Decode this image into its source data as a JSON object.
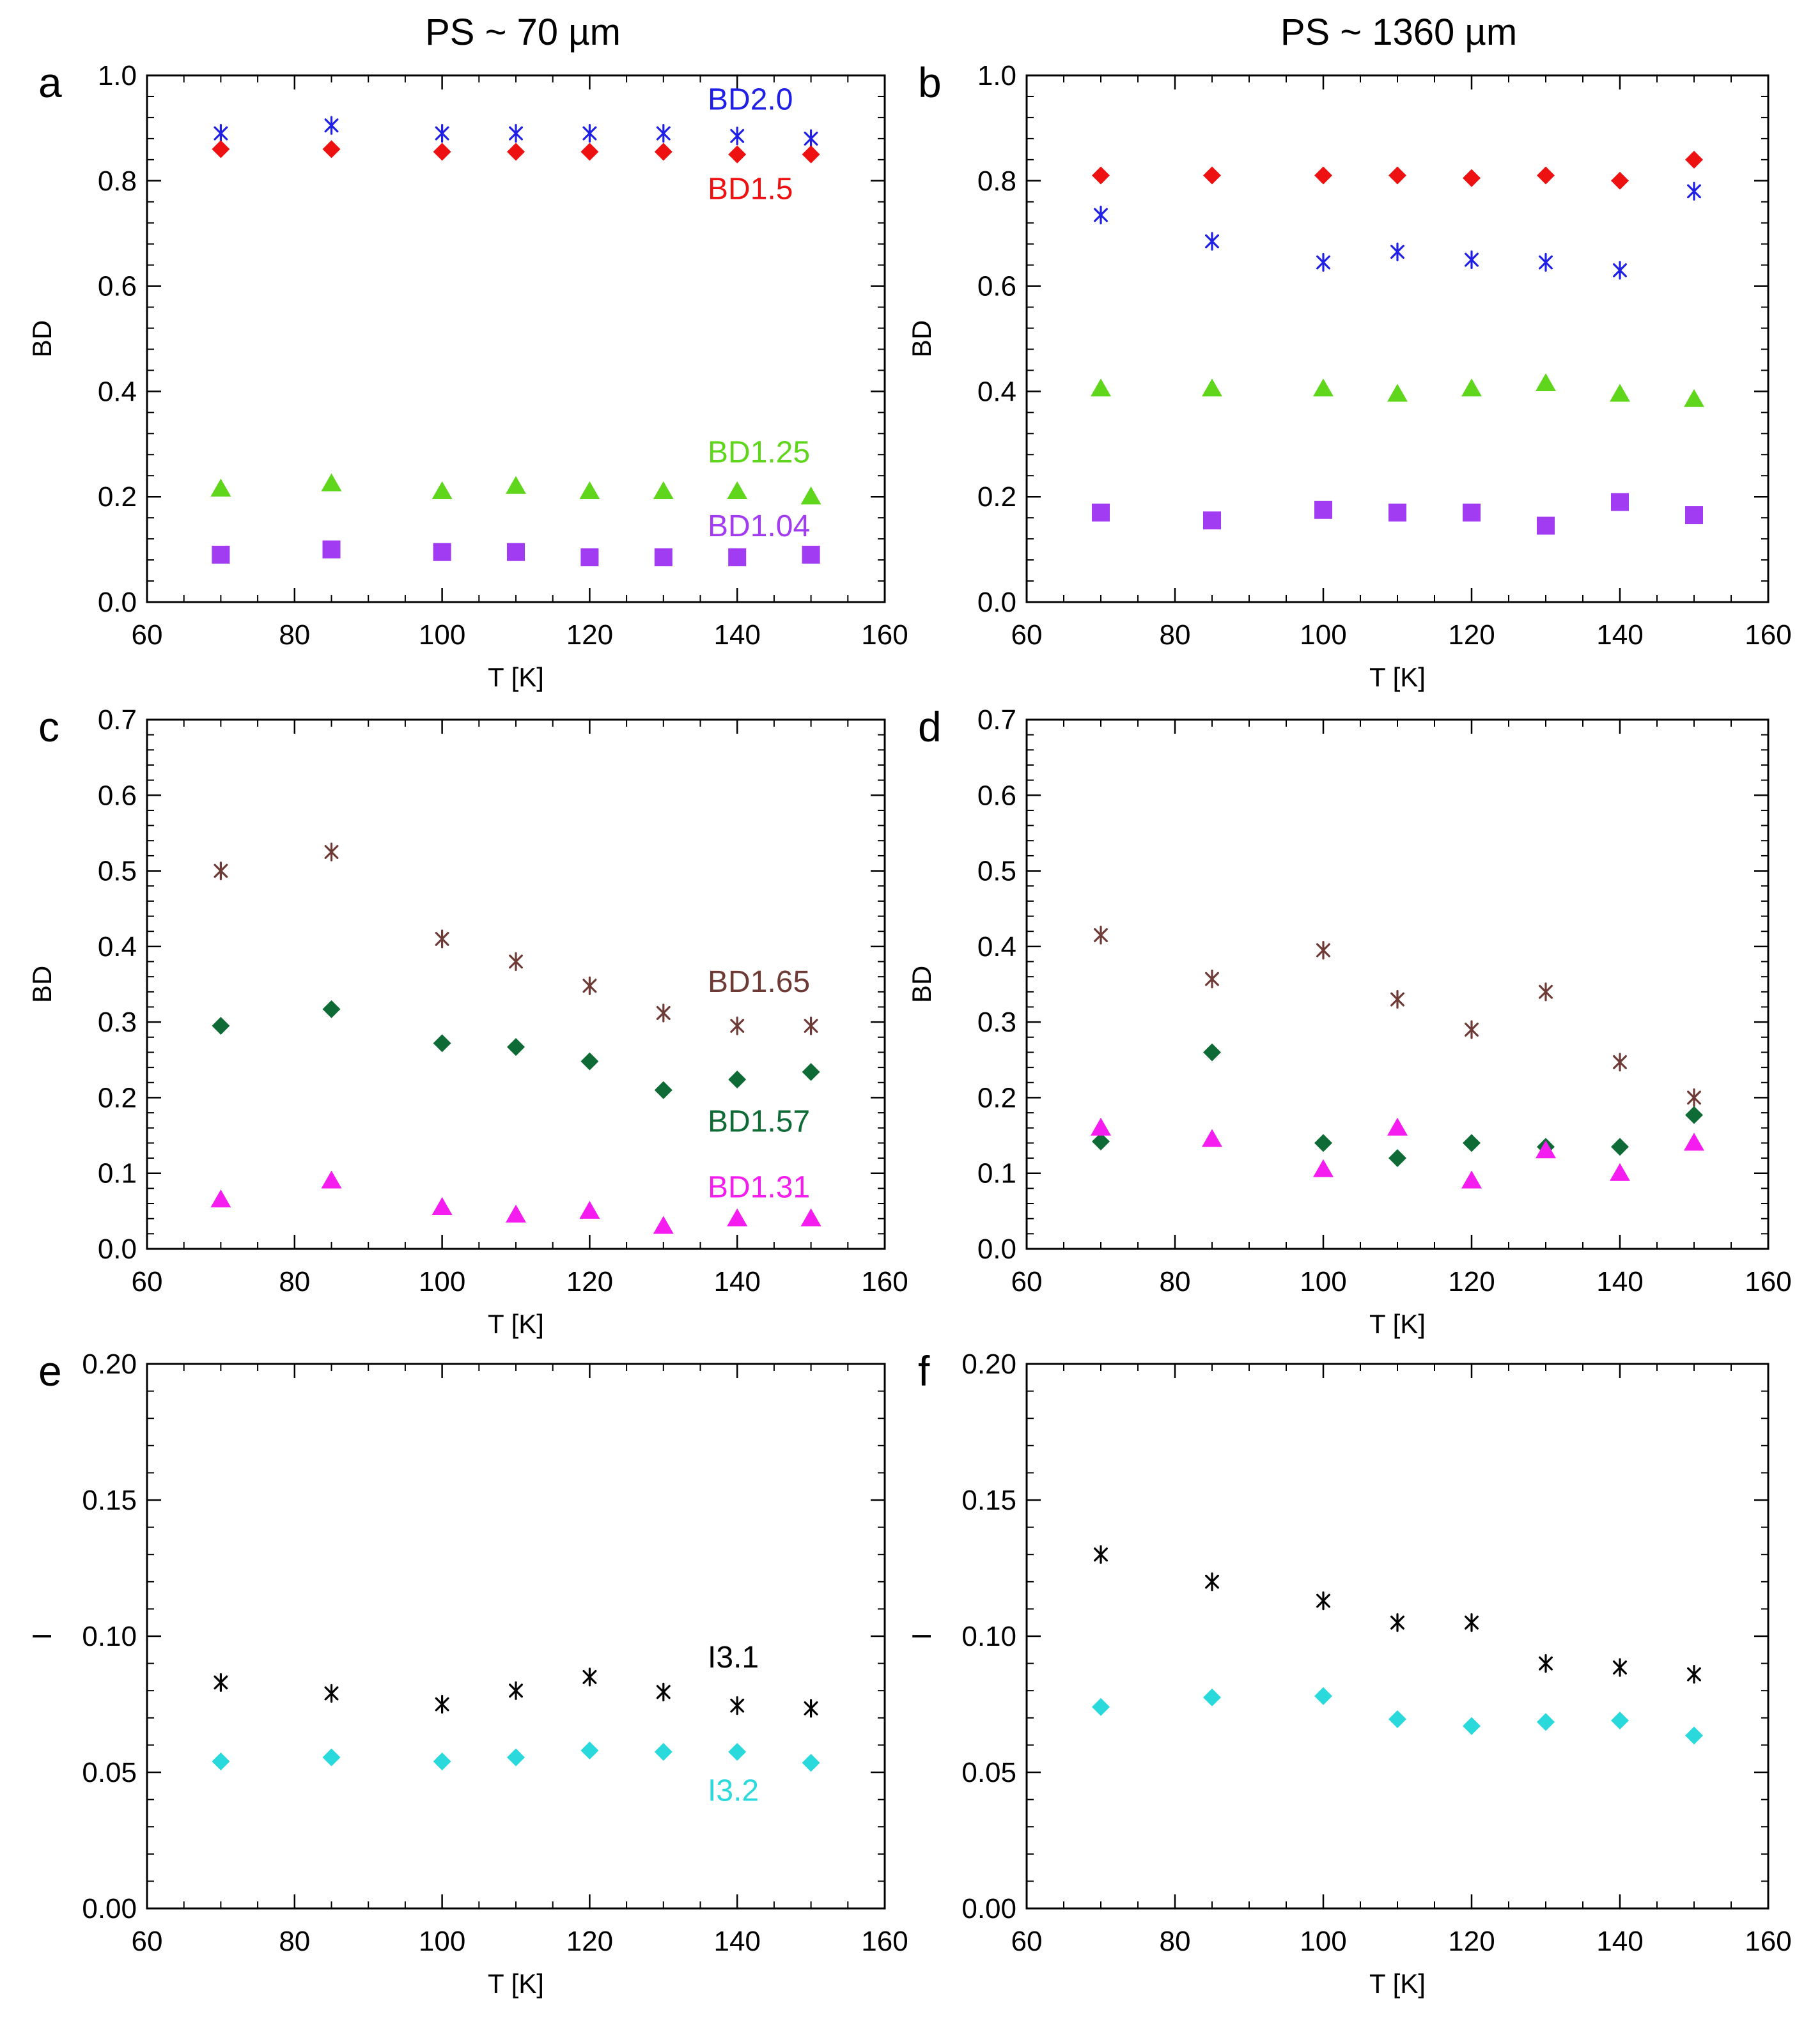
{
  "column_titles": [
    "PS ~ 70 µm",
    "PS ~ 1360 µm"
  ],
  "colors": {
    "blue": "#1f1fe6",
    "red": "#ee1111",
    "green": "#5fd61c",
    "purple": "#a23cf2",
    "brown": "#6e3a36",
    "darkgreen": "#0f6b35",
    "magenta": "#f51cf0",
    "black": "#000000",
    "cyan": "#29d9dc"
  },
  "chart_data": [
    {
      "panel": "a",
      "type": "scatter",
      "xlabel": "T [K]",
      "ylabel": "BD",
      "xlim": [
        60,
        160
      ],
      "ylim": [
        0,
        1.0
      ],
      "xticks": [
        "60",
        "80",
        "100",
        "120",
        "140",
        "160"
      ],
      "yticks": [
        "0.0",
        "0.2",
        "0.4",
        "0.6",
        "0.8",
        "1.0"
      ],
      "x": [
        70,
        85,
        100,
        110,
        120,
        130,
        140,
        150
      ],
      "series": [
        {
          "name": "BD2.0",
          "marker": "asterisk",
          "color": "blue",
          "values": [
            0.89,
            0.905,
            0.89,
            0.89,
            0.89,
            0.89,
            0.885,
            0.88
          ]
        },
        {
          "name": "BD1.5",
          "marker": "diamond",
          "color": "red",
          "values": [
            0.86,
            0.86,
            0.855,
            0.855,
            0.855,
            0.855,
            0.85,
            0.85
          ]
        },
        {
          "name": "BD1.25",
          "marker": "triangle",
          "color": "green",
          "values": [
            0.215,
            0.225,
            0.21,
            0.22,
            0.21,
            0.21,
            0.21,
            0.2
          ]
        },
        {
          "name": "BD1.04",
          "marker": "square",
          "color": "purple",
          "values": [
            0.09,
            0.1,
            0.095,
            0.095,
            0.085,
            0.085,
            0.085,
            0.09
          ]
        }
      ],
      "series_labels": [
        {
          "text": "BD2.0",
          "color": "blue",
          "x": 136,
          "y": 0.935
        },
        {
          "text": "BD1.5",
          "color": "red",
          "x": 136,
          "y": 0.765
        },
        {
          "text": "BD1.25",
          "color": "green",
          "x": 136,
          "y": 0.265
        },
        {
          "text": "BD1.04",
          "color": "purple",
          "x": 136,
          "y": 0.125
        }
      ]
    },
    {
      "panel": "b",
      "type": "scatter",
      "xlabel": "T [K]",
      "ylabel": "BD",
      "xlim": [
        60,
        160
      ],
      "ylim": [
        0,
        1.0
      ],
      "xticks": [
        "60",
        "80",
        "100",
        "120",
        "140",
        "160"
      ],
      "yticks": [
        "0.0",
        "0.2",
        "0.4",
        "0.6",
        "0.8",
        "1.0"
      ],
      "x": [
        70,
        85,
        100,
        110,
        120,
        130,
        140,
        150
      ],
      "series": [
        {
          "marker": "diamond",
          "color": "red",
          "values": [
            0.81,
            0.81,
            0.81,
            0.81,
            0.805,
            0.81,
            0.8,
            0.84
          ]
        },
        {
          "marker": "asterisk",
          "color": "blue",
          "values": [
            0.735,
            0.685,
            0.645,
            0.665,
            0.65,
            0.645,
            0.63,
            0.78
          ]
        },
        {
          "marker": "triangle",
          "color": "green",
          "values": [
            0.405,
            0.405,
            0.405,
            0.395,
            0.405,
            0.415,
            0.395,
            0.385
          ]
        },
        {
          "marker": "square",
          "color": "purple",
          "values": [
            0.17,
            0.155,
            0.175,
            0.17,
            0.17,
            0.145,
            0.19,
            0.165
          ]
        }
      ],
      "series_labels": []
    },
    {
      "panel": "c",
      "type": "scatter",
      "xlabel": "T [K]",
      "ylabel": "BD",
      "xlim": [
        60,
        160
      ],
      "ylim": [
        0,
        0.7
      ],
      "xticks": [
        "60",
        "80",
        "100",
        "120",
        "140",
        "160"
      ],
      "yticks": [
        "0.0",
        "0.1",
        "0.2",
        "0.3",
        "0.4",
        "0.5",
        "0.6",
        "0.7"
      ],
      "x": [
        70,
        85,
        100,
        110,
        120,
        130,
        140,
        150
      ],
      "series": [
        {
          "name": "BD1.65",
          "marker": "asterisk",
          "color": "brown",
          "values": [
            0.5,
            0.525,
            0.41,
            0.38,
            0.348,
            0.312,
            0.295,
            0.295
          ]
        },
        {
          "name": "BD1.57",
          "marker": "diamond",
          "color": "darkgreen",
          "values": [
            0.295,
            0.317,
            0.272,
            0.267,
            0.248,
            0.21,
            0.224,
            0.234
          ]
        },
        {
          "name": "BD1.31",
          "marker": "triangle",
          "color": "magenta",
          "values": [
            0.065,
            0.09,
            0.055,
            0.045,
            0.05,
            0.03,
            0.04,
            0.04
          ]
        }
      ],
      "series_labels": [
        {
          "text": "BD1.65",
          "color": "brown",
          "x": 136,
          "y": 0.34
        },
        {
          "text": "BD1.57",
          "color": "darkgreen",
          "x": 136,
          "y": 0.155
        },
        {
          "text": "BD1.31",
          "color": "magenta",
          "x": 136,
          "y": 0.068
        }
      ]
    },
    {
      "panel": "d",
      "type": "scatter",
      "xlabel": "T [K]",
      "ylabel": "BD",
      "xlim": [
        60,
        160
      ],
      "ylim": [
        0,
        0.7
      ],
      "xticks": [
        "60",
        "80",
        "100",
        "120",
        "140",
        "160"
      ],
      "yticks": [
        "0.0",
        "0.1",
        "0.2",
        "0.3",
        "0.4",
        "0.5",
        "0.6",
        "0.7"
      ],
      "x": [
        70,
        85,
        100,
        110,
        120,
        130,
        140,
        150
      ],
      "series": [
        {
          "marker": "asterisk",
          "color": "brown",
          "values": [
            0.415,
            0.357,
            0.395,
            0.33,
            0.29,
            0.34,
            0.247,
            0.2
          ]
        },
        {
          "marker": "diamond",
          "color": "darkgreen",
          "values": [
            0.142,
            0.26,
            0.14,
            0.12,
            0.14,
            0.135,
            0.135,
            0.177
          ]
        },
        {
          "marker": "triangle",
          "color": "magenta",
          "values": [
            0.16,
            0.145,
            0.105,
            0.16,
            0.09,
            0.13,
            0.1,
            0.14
          ]
        }
      ],
      "series_labels": []
    },
    {
      "panel": "e",
      "type": "scatter",
      "xlabel": "T [K]",
      "ylabel": "I",
      "xlim": [
        60,
        160
      ],
      "ylim": [
        0,
        0.2
      ],
      "xticks": [
        "60",
        "80",
        "100",
        "120",
        "140",
        "160"
      ],
      "yticks": [
        "0.00",
        "0.05",
        "0.10",
        "0.15",
        "0.20"
      ],
      "x": [
        70,
        85,
        100,
        110,
        120,
        130,
        140,
        150
      ],
      "series": [
        {
          "name": "I3.1",
          "marker": "asterisk",
          "color": "black",
          "values": [
            0.083,
            0.079,
            0.075,
            0.08,
            0.085,
            0.0795,
            0.0745,
            0.0735
          ]
        },
        {
          "name": "I3.2",
          "marker": "diamond",
          "color": "cyan",
          "values": [
            0.054,
            0.0555,
            0.054,
            0.0555,
            0.058,
            0.0575,
            0.0575,
            0.0535
          ]
        }
      ],
      "series_labels": [
        {
          "text": "I3.1",
          "color": "black",
          "x": 136,
          "y": 0.0885
        },
        {
          "text": "I3.2",
          "color": "cyan",
          "x": 136,
          "y": 0.0395
        }
      ]
    },
    {
      "panel": "f",
      "type": "scatter",
      "xlabel": "T [K]",
      "ylabel": "I",
      "xlim": [
        60,
        160
      ],
      "ylim": [
        0,
        0.2
      ],
      "xticks": [
        "60",
        "80",
        "100",
        "120",
        "140",
        "160"
      ],
      "yticks": [
        "0.00",
        "0.05",
        "0.10",
        "0.15",
        "0.20"
      ],
      "x": [
        70,
        85,
        100,
        110,
        120,
        130,
        140,
        150
      ],
      "series": [
        {
          "marker": "asterisk",
          "color": "black",
          "values": [
            0.13,
            0.12,
            0.113,
            0.105,
            0.105,
            0.09,
            0.0885,
            0.086
          ]
        },
        {
          "marker": "diamond",
          "color": "cyan",
          "values": [
            0.074,
            0.0775,
            0.078,
            0.0695,
            0.067,
            0.0685,
            0.069,
            0.0635
          ]
        }
      ],
      "series_labels": []
    }
  ]
}
